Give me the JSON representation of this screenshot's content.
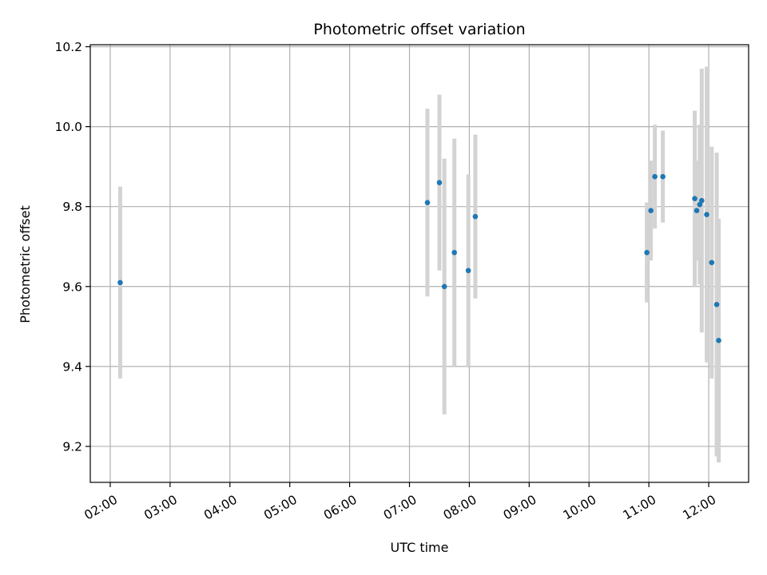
{
  "chart_data": {
    "type": "scatter",
    "title": "Photometric offset variation",
    "xlabel": "UTC time",
    "ylabel": "Photometric offset",
    "x_unit": "hour",
    "xlim": [
      "01:40",
      "12:40"
    ],
    "ylim": [
      9.11,
      10.205
    ],
    "x_ticks": [
      "02:00",
      "03:00",
      "04:00",
      "05:00",
      "06:00",
      "07:00",
      "08:00",
      "09:00",
      "10:00",
      "11:00",
      "12:00"
    ],
    "y_ticks": [
      "9.2",
      "9.4",
      "9.6",
      "9.8",
      "10.0",
      "10.2"
    ],
    "grid": true,
    "legend": "none",
    "colors": {
      "points": "#1f77b4",
      "errorbars": "#d3d3d3",
      "grid": "#b0b0b0"
    },
    "series": [
      {
        "points": [
          {
            "x": "02:10",
            "y": 9.61,
            "err": 0.24
          },
          {
            "x": "07:18",
            "y": 9.81,
            "err": 0.235
          },
          {
            "x": "07:30",
            "y": 9.86,
            "err": 0.22
          },
          {
            "x": "07:35",
            "y": 9.6,
            "err": 0.32
          },
          {
            "x": "07:45",
            "y": 9.685,
            "err": 0.285
          },
          {
            "x": "07:59",
            "y": 9.64,
            "err": 0.24
          },
          {
            "x": "08:06",
            "y": 9.775,
            "err": 0.205
          },
          {
            "x": "10:58",
            "y": 9.685,
            "err": 0.125
          },
          {
            "x": "11:02",
            "y": 9.79,
            "err": 0.125
          },
          {
            "x": "11:06",
            "y": 9.875,
            "err": 0.13
          },
          {
            "x": "11:14",
            "y": 9.875,
            "err": 0.115
          },
          {
            "x": "11:46",
            "y": 9.82,
            "err": 0.22
          },
          {
            "x": "11:48",
            "y": 9.79,
            "err": 0.125
          },
          {
            "x": "11:51",
            "y": 9.805,
            "err": 0.2
          },
          {
            "x": "11:53",
            "y": 9.815,
            "err": 0.33
          },
          {
            "x": "11:58",
            "y": 9.78,
            "err": 0.37
          },
          {
            "x": "12:03",
            "y": 9.66,
            "err": 0.29
          },
          {
            "x": "12:08",
            "y": 9.555,
            "err": 0.38
          },
          {
            "x": "12:10",
            "y": 9.465,
            "err": 0.305
          }
        ]
      }
    ]
  }
}
